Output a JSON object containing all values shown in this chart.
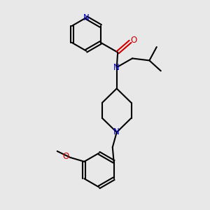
{
  "bg_color": "#e8e8e8",
  "bond_color": "#000000",
  "N_color": "#0000cc",
  "O_color": "#cc0000",
  "line_width": 1.5,
  "figsize": [
    3.0,
    3.0
  ],
  "dpi": 100,
  "xlim": [
    0,
    10
  ],
  "ylim": [
    0,
    10
  ]
}
